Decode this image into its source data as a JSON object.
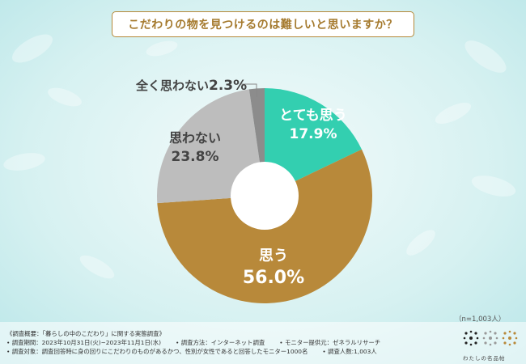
{
  "title": "こだわりの物を見つけるのは難しいと思いますか？",
  "chart_data": {
    "type": "pie",
    "donut": true,
    "slices": [
      {
        "label": "とても思う",
        "value": 17.9,
        "display": "17.9%",
        "color": "#33cfb0"
      },
      {
        "label": "思う",
        "value": 56.0,
        "display": "56.0%",
        "color": "#b8893a"
      },
      {
        "label": "思わない",
        "value": 23.8,
        "display": "23.8%",
        "color": "#bdbdbd"
      },
      {
        "label": "全く思わない",
        "value": 2.3,
        "display": "2.3%",
        "color": "#8c8c8c"
      }
    ]
  },
  "sample_size": "（n=1,003人）",
  "notes": {
    "overview": "《調査概要：「暮らしの中のこだわり」に関する実態調査》",
    "period": "• 調査期間：2023年10月31日(火)~2023年11月1日(水)",
    "method": "• 調査方法：インターネット調査",
    "provider": "• モニター提供元：ゼネラルリサーチ",
    "target": "• 調査対象：調査回答時に身の回りにこだわりのものがあるかつ、性別が女性であると回答したモニター1000名",
    "count": "• 調査人数:1,003人"
  },
  "brand": "わたしの名品帖"
}
